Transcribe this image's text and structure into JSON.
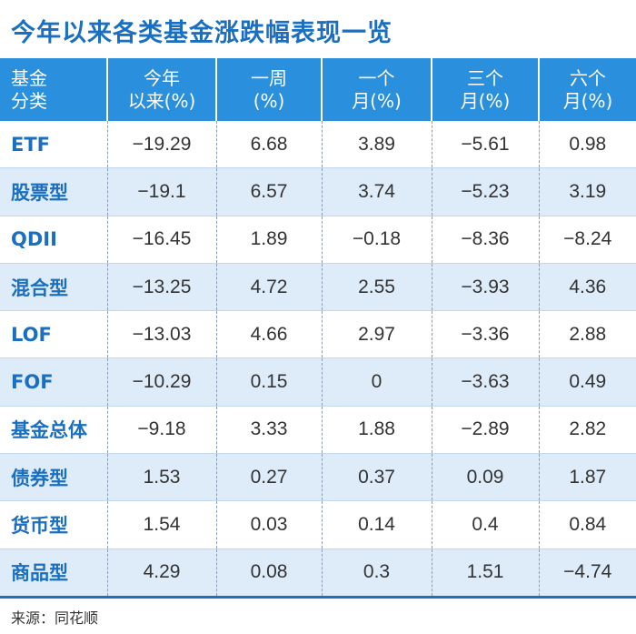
{
  "title": "今年以来各类基金涨跌幅表现一览",
  "source": "来源：同花顺",
  "colors": {
    "header_bg": "#2a8fdc",
    "title": "#1a6fc0",
    "stripe": "#deebf8"
  },
  "chart_data": {
    "type": "table",
    "title": "今年以来各类基金涨跌幅表现一览",
    "columns": [
      {
        "line1": "基金",
        "line2": "分类"
      },
      {
        "line1": "今年",
        "line2": "以来(%)"
      },
      {
        "line1": "一周",
        "line2": "(%)"
      },
      {
        "line1": "一个",
        "line2": "月(%)"
      },
      {
        "line1": "三个",
        "line2": "月(%)"
      },
      {
        "line1": "六个",
        "line2": "月(%)"
      }
    ],
    "rows": [
      {
        "category": "ETF",
        "values": [
          "−19.29",
          "6.68",
          "3.89",
          "−5.61",
          "0.98"
        ]
      },
      {
        "category": "股票型",
        "values": [
          "−19.1",
          "6.57",
          "3.74",
          "−5.23",
          "3.19"
        ]
      },
      {
        "category": "QDII",
        "values": [
          "−16.45",
          "1.89",
          "−0.18",
          "−8.36",
          "−8.24"
        ]
      },
      {
        "category": "混合型",
        "values": [
          "−13.25",
          "4.72",
          "2.55",
          "−3.93",
          "4.36"
        ]
      },
      {
        "category": "LOF",
        "values": [
          "−13.03",
          "4.66",
          "2.97",
          "−3.36",
          "2.88"
        ]
      },
      {
        "category": "FOF",
        "values": [
          "−10.29",
          "0.15",
          "0",
          "−3.63",
          "0.49"
        ]
      },
      {
        "category": "基金总体",
        "values": [
          "−9.18",
          "3.33",
          "1.88",
          "−2.89",
          "2.82"
        ]
      },
      {
        "category": "债券型",
        "values": [
          "1.53",
          "0.27",
          "0.37",
          "0.09",
          "1.87"
        ]
      },
      {
        "category": "货币型",
        "values": [
          "1.54",
          "0.03",
          "0.14",
          "0.4",
          "0.84"
        ]
      },
      {
        "category": "商品型",
        "values": [
          "4.29",
          "0.08",
          "0.3",
          "1.51",
          "−4.74"
        ]
      }
    ]
  }
}
